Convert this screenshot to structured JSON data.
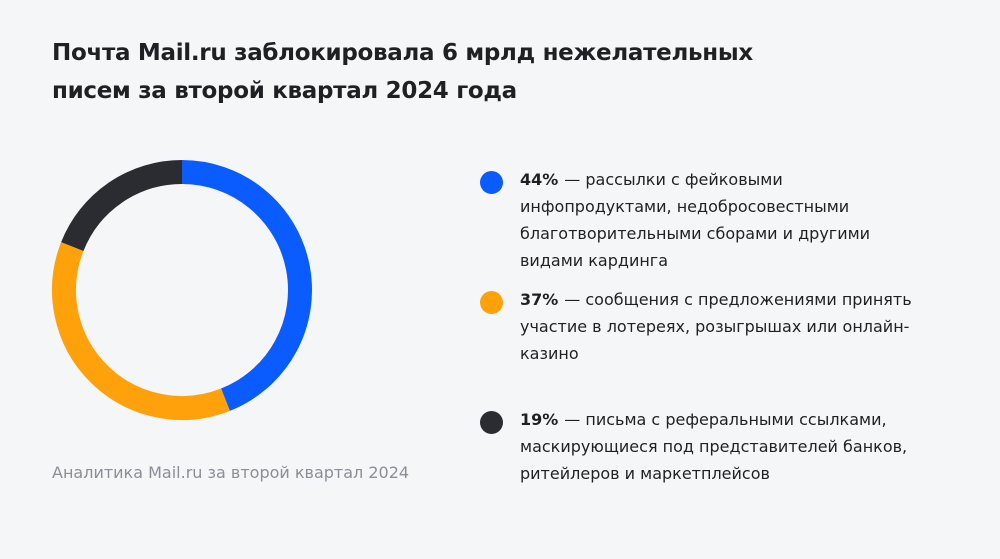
{
  "chart_data": {
    "type": "pie",
    "donut": true,
    "title": "Почта Mail.ru заблокировала 6 мрлд нежелательных писем за второй квартал 2024 года",
    "note": "Аналитика Mail.ru за второй квартал 2024",
    "categories": [
      "— рассылки с фейковыми инфопродуктами, недобросовестными благотворительными сборами и другими видами кардинга",
      "— сообщения с предложениями принять участие в лотереях, розыгрышах или онлайн-казино",
      "— письма с реферальными ссылками, маскирующиеся под представителей банков, ритейлеров и маркетплейсов"
    ],
    "values": [
      44,
      37,
      19
    ],
    "value_labels": [
      "44%",
      "37%",
      "19%"
    ],
    "colors": [
      "#0a5cff",
      "#ffa10a",
      "#2a2c31"
    ]
  }
}
